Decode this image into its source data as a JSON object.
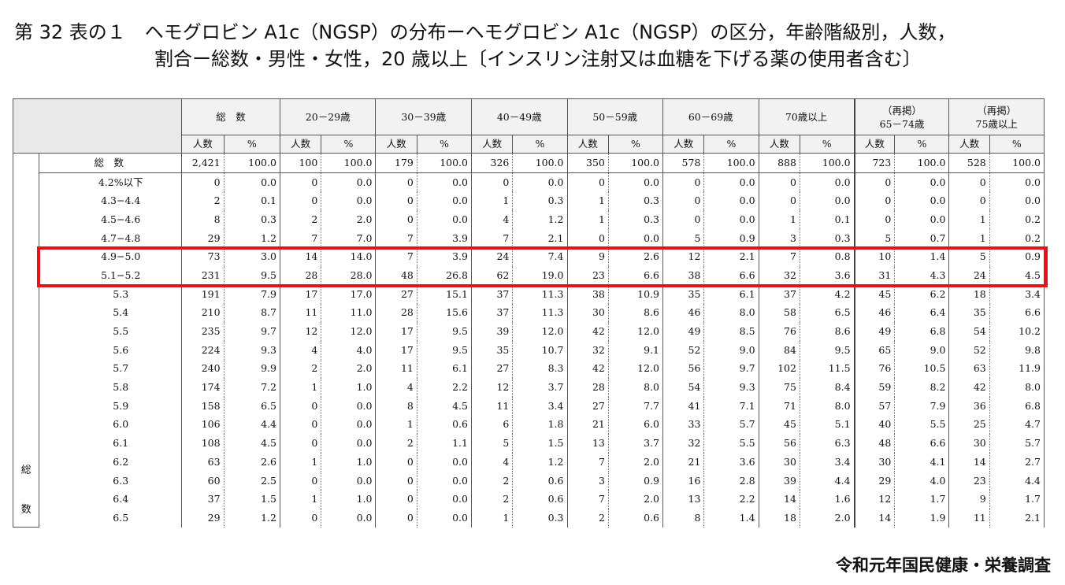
{
  "title": {
    "line1": "第 32 表の１　ヘモグロビン A1c（NGSP）の分布ーヘモグロビン A1c（NGSP）の区分，年齢階級別，人数，",
    "line2": "割合ー総数・男性・女性，20 歳以上〔インスリン注射又は血糖を下げる薬の使用者含む〕"
  },
  "table": {
    "groups": [
      {
        "label": "総　数",
        "sub": ""
      },
      {
        "label": "20－29歳",
        "sub": ""
      },
      {
        "label": "30－39歳",
        "sub": ""
      },
      {
        "label": "40－49歳",
        "sub": ""
      },
      {
        "label": "50－59歳",
        "sub": ""
      },
      {
        "label": "60－69歳",
        "sub": ""
      },
      {
        "label": "70歳以上",
        "sub": ""
      },
      {
        "label": "（再掲）",
        "sub": "65－74歳"
      },
      {
        "label": "（再掲）",
        "sub": "75歳以上"
      }
    ],
    "sub_count": "人数",
    "sub_pct": "%",
    "side_label": [
      "総",
      "数"
    ],
    "rows": [
      {
        "label": "総　数",
        "values": [
          "2,421",
          "100.0",
          "100",
          "100.0",
          "179",
          "100.0",
          "326",
          "100.0",
          "350",
          "100.0",
          "578",
          "100.0",
          "888",
          "100.0",
          "723",
          "100.0",
          "528",
          "100.0"
        ]
      },
      {
        "label": "4.2%以下",
        "values": [
          "0",
          "0.0",
          "0",
          "0.0",
          "0",
          "0.0",
          "0",
          "0.0",
          "0",
          "0.0",
          "0",
          "0.0",
          "0",
          "0.0",
          "0",
          "0.0",
          "0",
          "0.0"
        ]
      },
      {
        "label": "4.3−4.4",
        "values": [
          "2",
          "0.1",
          "0",
          "0.0",
          "0",
          "0.0",
          "1",
          "0.3",
          "1",
          "0.3",
          "0",
          "0.0",
          "0",
          "0.0",
          "0",
          "0.0",
          "0",
          "0.0"
        ]
      },
      {
        "label": "4.5−4.6",
        "values": [
          "8",
          "0.3",
          "2",
          "2.0",
          "0",
          "0.0",
          "4",
          "1.2",
          "1",
          "0.3",
          "0",
          "0.0",
          "1",
          "0.1",
          "0",
          "0.0",
          "1",
          "0.2"
        ]
      },
      {
        "label": "4.7−4.8",
        "values": [
          "29",
          "1.2",
          "7",
          "7.0",
          "7",
          "3.9",
          "7",
          "2.1",
          "0",
          "0.0",
          "5",
          "0.9",
          "3",
          "0.3",
          "5",
          "0.7",
          "1",
          "0.2"
        ]
      },
      {
        "label": "4.9−5.0",
        "values": [
          "73",
          "3.0",
          "14",
          "14.0",
          "7",
          "3.9",
          "24",
          "7.4",
          "9",
          "2.6",
          "12",
          "2.1",
          "7",
          "0.8",
          "10",
          "1.4",
          "5",
          "0.9"
        ]
      },
      {
        "label": "5.1−5.2",
        "values": [
          "231",
          "9.5",
          "28",
          "28.0",
          "48",
          "26.8",
          "62",
          "19.0",
          "23",
          "6.6",
          "38",
          "6.6",
          "32",
          "3.6",
          "31",
          "4.3",
          "24",
          "4.5"
        ]
      },
      {
        "label": "5.3",
        "values": [
          "191",
          "7.9",
          "17",
          "17.0",
          "27",
          "15.1",
          "37",
          "11.3",
          "38",
          "10.9",
          "35",
          "6.1",
          "37",
          "4.2",
          "45",
          "6.2",
          "18",
          "3.4"
        ]
      },
      {
        "label": "5.4",
        "values": [
          "210",
          "8.7",
          "11",
          "11.0",
          "28",
          "15.6",
          "37",
          "11.3",
          "30",
          "8.6",
          "46",
          "8.0",
          "58",
          "6.5",
          "46",
          "6.4",
          "35",
          "6.6"
        ]
      },
      {
        "label": "5.5",
        "values": [
          "235",
          "9.7",
          "12",
          "12.0",
          "17",
          "9.5",
          "39",
          "12.0",
          "42",
          "12.0",
          "49",
          "8.5",
          "76",
          "8.6",
          "49",
          "6.8",
          "54",
          "10.2"
        ]
      },
      {
        "label": "5.6",
        "values": [
          "224",
          "9.3",
          "4",
          "4.0",
          "17",
          "9.5",
          "35",
          "10.7",
          "32",
          "9.1",
          "52",
          "9.0",
          "84",
          "9.5",
          "65",
          "9.0",
          "52",
          "9.8"
        ]
      },
      {
        "label": "5.7",
        "values": [
          "240",
          "9.9",
          "2",
          "2.0",
          "11",
          "6.1",
          "27",
          "8.3",
          "42",
          "12.0",
          "56",
          "9.7",
          "102",
          "11.5",
          "76",
          "10.5",
          "63",
          "11.9"
        ]
      },
      {
        "label": "5.8",
        "values": [
          "174",
          "7.2",
          "1",
          "1.0",
          "4",
          "2.2",
          "12",
          "3.7",
          "28",
          "8.0",
          "54",
          "9.3",
          "75",
          "8.4",
          "59",
          "8.2",
          "42",
          "8.0"
        ]
      },
      {
        "label": "5.9",
        "values": [
          "158",
          "6.5",
          "0",
          "0.0",
          "8",
          "4.5",
          "11",
          "3.4",
          "27",
          "7.7",
          "41",
          "7.1",
          "71",
          "8.0",
          "57",
          "7.9",
          "36",
          "6.8"
        ]
      },
      {
        "label": "6.0",
        "values": [
          "106",
          "4.4",
          "0",
          "0.0",
          "1",
          "0.6",
          "6",
          "1.8",
          "21",
          "6.0",
          "33",
          "5.7",
          "45",
          "5.1",
          "40",
          "5.5",
          "25",
          "4.7"
        ]
      },
      {
        "label": "6.1",
        "values": [
          "108",
          "4.5",
          "0",
          "0.0",
          "2",
          "1.1",
          "5",
          "1.5",
          "13",
          "3.7",
          "32",
          "5.5",
          "56",
          "6.3",
          "48",
          "6.6",
          "30",
          "5.7"
        ]
      },
      {
        "label": "6.2",
        "values": [
          "63",
          "2.6",
          "1",
          "1.0",
          "0",
          "0.0",
          "4",
          "1.2",
          "7",
          "2.0",
          "21",
          "3.6",
          "30",
          "3.4",
          "30",
          "4.1",
          "14",
          "2.7"
        ]
      },
      {
        "label": "6.3",
        "values": [
          "60",
          "2.5",
          "0",
          "0.0",
          "0",
          "0.0",
          "2",
          "0.6",
          "3",
          "0.9",
          "16",
          "2.8",
          "39",
          "4.4",
          "29",
          "4.0",
          "23",
          "4.4"
        ]
      },
      {
        "label": "6.4",
        "values": [
          "37",
          "1.5",
          "1",
          "1.0",
          "0",
          "0.0",
          "2",
          "0.6",
          "7",
          "2.0",
          "13",
          "2.2",
          "14",
          "1.6",
          "12",
          "1.7",
          "9",
          "1.7"
        ]
      },
      {
        "label": "6.5",
        "values": [
          "29",
          "1.2",
          "0",
          "0.0",
          "0",
          "0.0",
          "1",
          "0.3",
          "2",
          "0.6",
          "8",
          "1.4",
          "18",
          "2.0",
          "14",
          "1.9",
          "11",
          "2.1"
        ]
      }
    ]
  },
  "highlight": {
    "rows": [
      "4.9−5.0",
      "5.1−5.2"
    ],
    "color": "#e8131a"
  },
  "footer": "令和元年国民健康・栄養調査"
}
